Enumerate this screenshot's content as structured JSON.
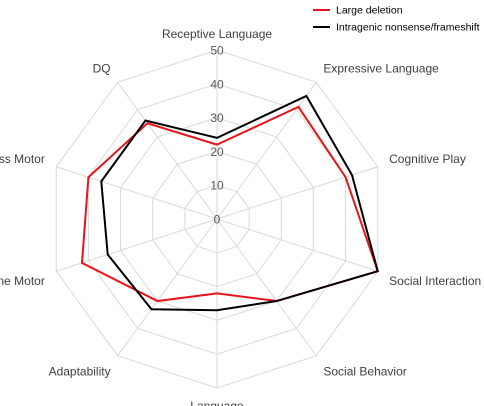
{
  "chart_data": {
    "type": "radar",
    "categories": [
      "Receptive Language",
      "Expressive Language",
      "Cognitive Play",
      "Social Interaction",
      "Social Behavior",
      "Language",
      "Adaptability",
      "Fine Motor",
      "Gross Motor",
      "DQ"
    ],
    "rlim": [
      0,
      50
    ],
    "ticks": [
      0,
      10,
      20,
      30,
      40,
      50
    ],
    "series": [
      {
        "name": "Large deletion",
        "color": "#e8141b",
        "values": [
          22,
          41,
          40,
          50,
          30,
          22,
          30,
          42,
          40,
          35
        ]
      },
      {
        "name": "Intragenic nonsense/frameshift",
        "color": "#000000",
        "values": [
          24,
          45,
          42,
          50,
          30,
          27,
          33,
          34,
          36,
          36
        ]
      }
    ],
    "legend": "top-right",
    "grid": true
  }
}
